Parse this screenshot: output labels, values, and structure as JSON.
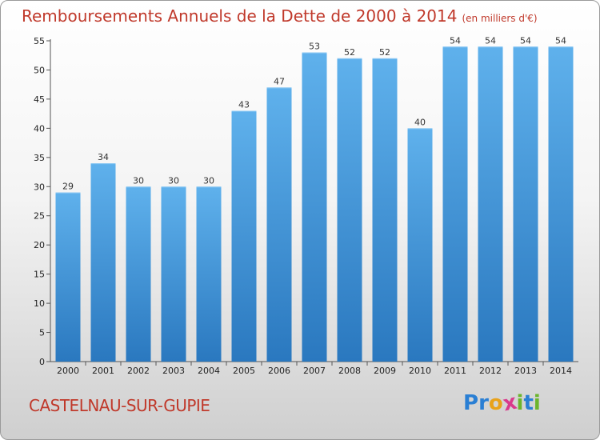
{
  "chart_data": {
    "type": "bar",
    "title": "Remboursements Annuels de la Dette de 2000 à 2014",
    "unit_label": "(en milliers d'€)",
    "xlabel": "",
    "ylabel": "",
    "categories": [
      "2000",
      "2001",
      "2002",
      "2003",
      "2004",
      "2005",
      "2006",
      "2007",
      "2008",
      "2009",
      "2010",
      "2011",
      "2012",
      "2013",
      "2014"
    ],
    "values": [
      29,
      34,
      30,
      30,
      30,
      43,
      47,
      53,
      52,
      52,
      40,
      54,
      54,
      54,
      54
    ],
    "ylim": [
      0,
      55
    ],
    "yticks": [
      0,
      5,
      10,
      15,
      20,
      25,
      30,
      35,
      40,
      45,
      50,
      55
    ],
    "grid": false,
    "bar_color": "#3a8fd6"
  },
  "footer": {
    "commune": "CASTELNAU-SUR-GUPIE",
    "brand_letters": [
      {
        "ch": "P",
        "color": "#2a7fd4"
      },
      {
        "ch": "r",
        "color": "#2a7fd4"
      },
      {
        "ch": "o",
        "color": "#e8a21b"
      },
      {
        "ch": "x",
        "color": "#d93a8c"
      },
      {
        "ch": "i",
        "color": "#6cb52d"
      },
      {
        "ch": "t",
        "color": "#2a7fd4"
      },
      {
        "ch": "i",
        "color": "#6cb52d"
      }
    ]
  }
}
